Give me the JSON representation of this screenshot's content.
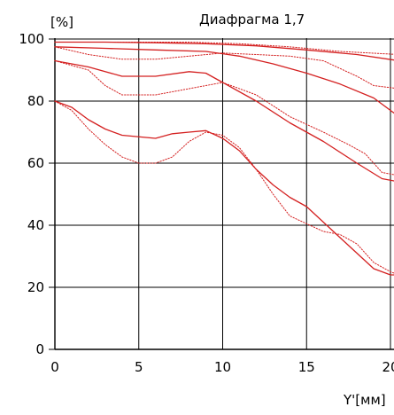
{
  "chart_data": {
    "type": "line",
    "title": "Диафрагма 1,7",
    "ylabel": "[%]",
    "xlabel": "Y'[мм]",
    "xlim": [
      0,
      20.5
    ],
    "ylim": [
      0,
      100
    ],
    "x_ticks": [
      0,
      5,
      10,
      15,
      20
    ],
    "y_ticks": [
      0,
      20,
      40,
      60,
      80,
      100
    ],
    "grid": true,
    "line_color": "#d42020",
    "series": [
      {
        "style": "solid",
        "points": [
          [
            0,
            99
          ],
          [
            3,
            99
          ],
          [
            6,
            98.8
          ],
          [
            9,
            98.5
          ],
          [
            12,
            97.8
          ],
          [
            15,
            96.5
          ],
          [
            18,
            95
          ],
          [
            20.5,
            93
          ]
        ]
      },
      {
        "style": "dotted",
        "points": [
          [
            0,
            99
          ],
          [
            4,
            99
          ],
          [
            8,
            99
          ],
          [
            11,
            98.5
          ],
          [
            14,
            97.5
          ],
          [
            17,
            96
          ],
          [
            20.5,
            95
          ]
        ]
      },
      {
        "style": "solid",
        "points": [
          [
            0,
            97.5
          ],
          [
            3,
            97
          ],
          [
            6,
            96.5
          ],
          [
            9,
            96
          ],
          [
            11,
            94.5
          ],
          [
            13,
            92
          ],
          [
            15,
            89
          ],
          [
            17,
            85.5
          ],
          [
            19,
            81
          ],
          [
            20.5,
            75
          ]
        ]
      },
      {
        "style": "dotted",
        "points": [
          [
            0,
            97.5
          ],
          [
            2,
            95
          ],
          [
            4,
            93.5
          ],
          [
            6,
            93.5
          ],
          [
            8,
            94.5
          ],
          [
            10,
            95.5
          ],
          [
            12,
            95
          ],
          [
            14,
            94.5
          ],
          [
            16,
            93
          ],
          [
            18,
            88
          ],
          [
            19,
            85
          ],
          [
            20.5,
            84
          ]
        ]
      },
      {
        "style": "solid",
        "points": [
          [
            0,
            93
          ],
          [
            2,
            91
          ],
          [
            4,
            88
          ],
          [
            6,
            88
          ],
          [
            8,
            89.5
          ],
          [
            9,
            89
          ],
          [
            10,
            86
          ],
          [
            12,
            80
          ],
          [
            14,
            73
          ],
          [
            16,
            67
          ],
          [
            18,
            60
          ],
          [
            19.5,
            55
          ],
          [
            20.5,
            54
          ]
        ]
      },
      {
        "style": "dotted",
        "points": [
          [
            0,
            93
          ],
          [
            2,
            90
          ],
          [
            3,
            85
          ],
          [
            4,
            82
          ],
          [
            6,
            82
          ],
          [
            8,
            84
          ],
          [
            10,
            86
          ],
          [
            12,
            82
          ],
          [
            14,
            75
          ],
          [
            16,
            70
          ],
          [
            17.5,
            66
          ],
          [
            18.5,
            63
          ],
          [
            19.5,
            57
          ],
          [
            20.5,
            56
          ]
        ]
      },
      {
        "style": "solid",
        "points": [
          [
            0,
            80
          ],
          [
            1,
            78
          ],
          [
            2,
            74
          ],
          [
            3,
            71
          ],
          [
            4,
            69
          ],
          [
            6,
            68
          ],
          [
            7,
            69.5
          ],
          [
            8,
            70
          ],
          [
            9,
            70.5
          ],
          [
            10,
            68
          ],
          [
            11,
            64
          ],
          [
            12,
            58
          ],
          [
            13,
            53
          ],
          [
            14,
            49
          ],
          [
            15,
            46
          ],
          [
            16,
            41
          ],
          [
            17,
            36
          ],
          [
            18,
            31
          ],
          [
            19,
            26
          ],
          [
            20,
            24
          ],
          [
            20.5,
            24
          ]
        ]
      },
      {
        "style": "dotted",
        "points": [
          [
            0,
            80
          ],
          [
            1,
            77
          ],
          [
            2,
            71
          ],
          [
            3,
            66
          ],
          [
            4,
            62
          ],
          [
            5,
            60
          ],
          [
            6,
            60
          ],
          [
            7,
            62
          ],
          [
            8,
            67
          ],
          [
            9,
            70
          ],
          [
            10,
            69
          ],
          [
            11,
            65
          ],
          [
            12,
            58
          ],
          [
            13,
            50
          ],
          [
            14,
            43
          ],
          [
            15,
            40.5
          ],
          [
            16,
            38
          ],
          [
            17,
            37
          ],
          [
            18,
            34
          ],
          [
            19,
            28
          ],
          [
            20,
            25
          ],
          [
            20.5,
            24
          ]
        ]
      }
    ]
  }
}
